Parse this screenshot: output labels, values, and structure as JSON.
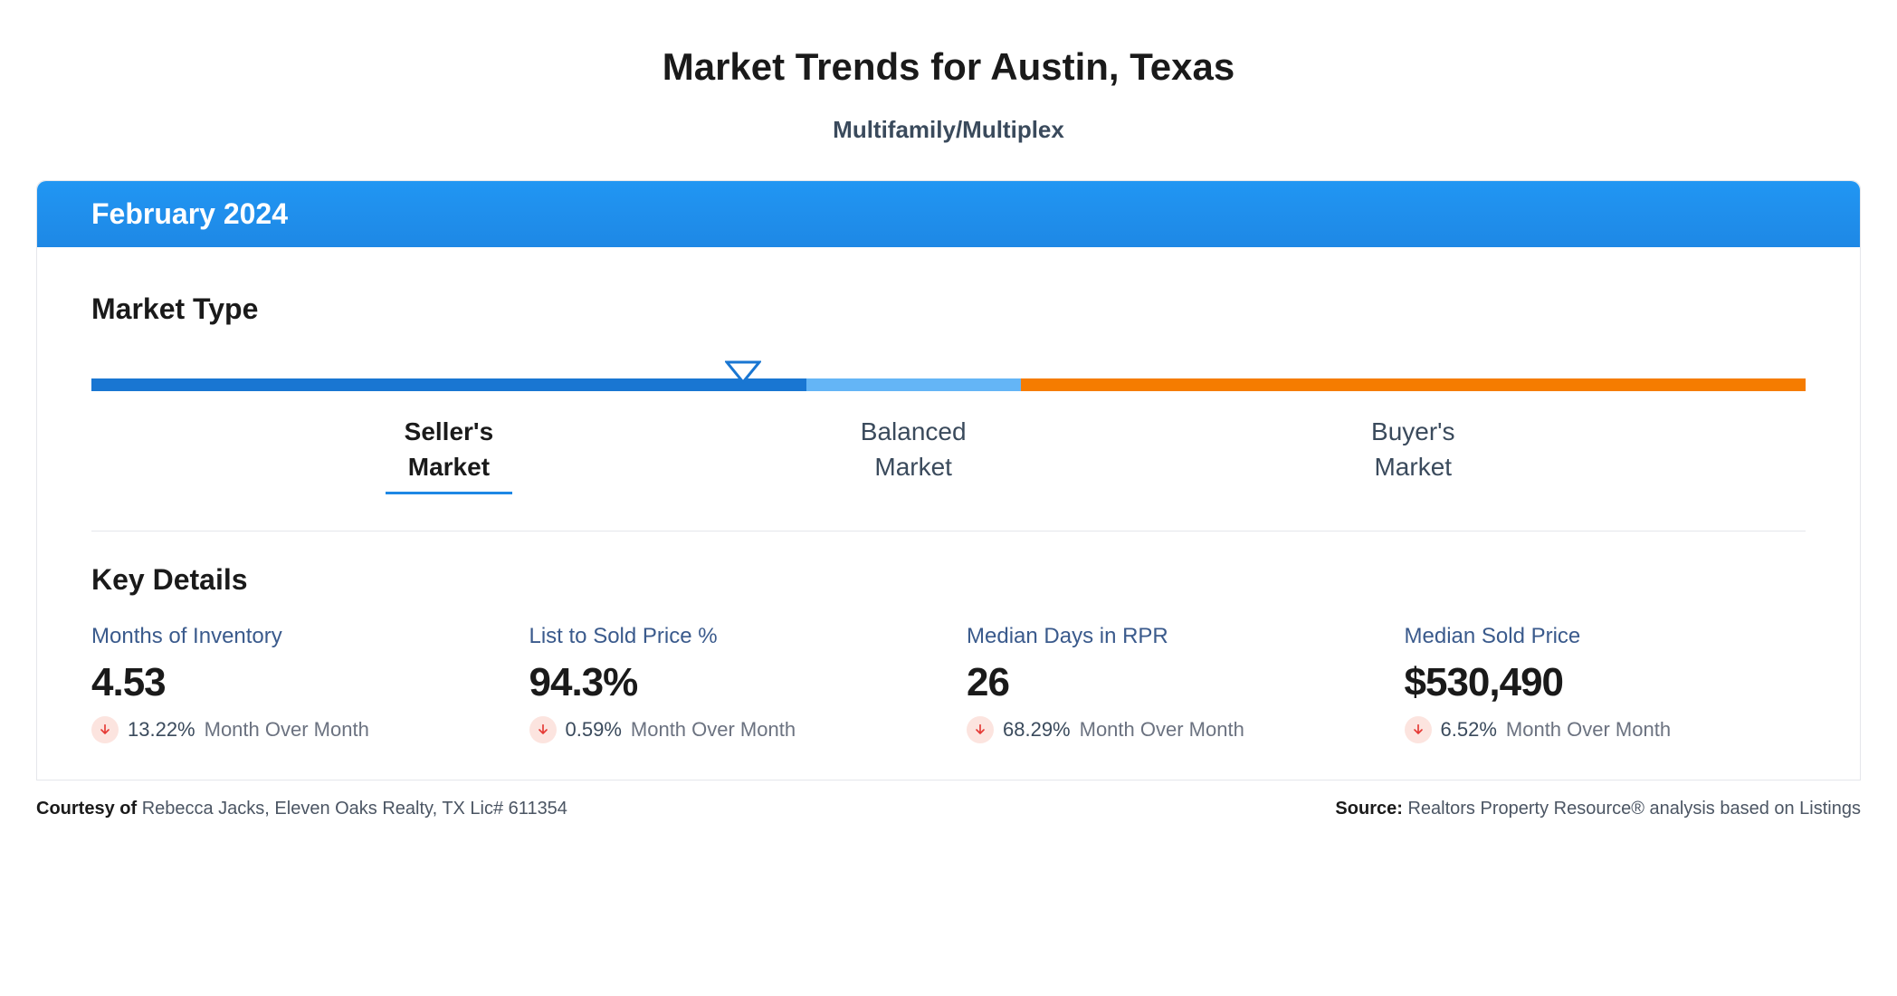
{
  "header": {
    "title": "Market Trends for Austin, Texas",
    "subtitle": "Multifamily/Multiplex",
    "date_label": "February 2024"
  },
  "market_type": {
    "section_title": "Market Type",
    "indicator_percent": 38,
    "indicator_color": "#1976d2",
    "segments": [
      {
        "label_line1": "Seller's",
        "label_line2": "Market",
        "start": 0,
        "width": 41.7,
        "color": "#1976d2",
        "active": true
      },
      {
        "label_line1": "Balanced",
        "label_line2": "Market",
        "start": 41.7,
        "width": 12.5,
        "color": "#64b5f6",
        "active": false
      },
      {
        "label_line1": "Buyer's",
        "label_line2": "Market",
        "start": 54.2,
        "width": 45.8,
        "color": "#f57c00",
        "active": false
      }
    ],
    "underline_color": "#1e88e5"
  },
  "key_details": {
    "section_title": "Key Details",
    "change_icon_bg": "#fce4df",
    "change_arrow_color": "#e53935",
    "change_period_label": "Month Over Month",
    "metrics": [
      {
        "label": "Months of Inventory",
        "value": "4.53",
        "change_pct": "13.22%",
        "direction": "down"
      },
      {
        "label": "List to Sold Price %",
        "value": "94.3%",
        "change_pct": "0.59%",
        "direction": "down"
      },
      {
        "label": "Median Days in RPR",
        "value": "26",
        "change_pct": "68.29%",
        "direction": "down"
      },
      {
        "label": "Median Sold Price",
        "value": "$530,490",
        "change_pct": "6.52%",
        "direction": "down"
      }
    ]
  },
  "footer": {
    "courtesy_label": "Courtesy of",
    "courtesy_value": "Rebecca Jacks, Eleven Oaks Realty, TX Lic# 611354",
    "source_label": "Source:",
    "source_value": "Realtors Property Resource® analysis based on Listings"
  },
  "colors": {
    "header_bg": "#1e88e5",
    "text_primary": "#1a1a1a",
    "text_secondary": "#3a4a5c",
    "text_muted": "#6b7280",
    "metric_label_color": "#3a5a8c",
    "divider": "#e5e7eb"
  }
}
